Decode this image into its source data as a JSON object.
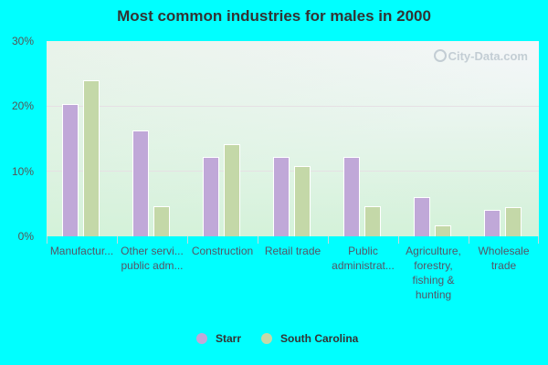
{
  "title": "Most common industries for males in 2000",
  "watermark": "City-Data.com",
  "colors": {
    "starr": "#c0a8d8",
    "south_carolina": "#c4d8a8",
    "background": "#00ffff"
  },
  "y_axis": {
    "ticks": [
      "30%",
      "20%",
      "10%",
      "0%"
    ]
  },
  "legend": [
    {
      "label": "Starr",
      "color": "#c0a8d8"
    },
    {
      "label": "South Carolina",
      "color": "#c4d8a8"
    }
  ],
  "x_labels": [
    [
      "Manufactur..."
    ],
    [
      "Other servi...",
      "public adm..."
    ],
    [
      "Construction"
    ],
    [
      "Retail trade"
    ],
    [
      "Public",
      "administrat..."
    ],
    [
      "Agriculture,",
      "forestry,",
      "fishing &",
      "hunting"
    ],
    [
      "Wholesale",
      "trade"
    ]
  ],
  "chart_data": {
    "type": "bar",
    "title": "Most common industries for males in 2000",
    "categories": [
      "Manufacturing",
      "Other services (except public administration)",
      "Construction",
      "Retail trade",
      "Public administration",
      "Agriculture, forestry, fishing & hunting",
      "Wholesale trade"
    ],
    "series": [
      {
        "name": "Starr",
        "values": [
          20.3,
          16.3,
          12.2,
          12.2,
          12.2,
          6.0,
          4.1
        ]
      },
      {
        "name": "South Carolina",
        "values": [
          24.0,
          4.6,
          14.2,
          10.8,
          4.6,
          1.7,
          4.5
        ]
      }
    ],
    "xlabel": "",
    "ylabel": "",
    "ylim": [
      0,
      30
    ],
    "yticks": [
      "0%",
      "10%",
      "20%",
      "30%"
    ],
    "grid": true,
    "legend_position": "bottom"
  }
}
